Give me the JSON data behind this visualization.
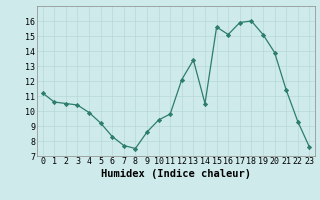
{
  "xlabel": "Humidex (Indice chaleur)",
  "ylabel": "",
  "x": [
    0,
    1,
    2,
    3,
    4,
    5,
    6,
    7,
    8,
    9,
    10,
    11,
    12,
    13,
    14,
    15,
    16,
    17,
    18,
    19,
    20,
    21,
    22,
    23
  ],
  "y": [
    11.2,
    10.6,
    10.5,
    10.4,
    9.9,
    9.2,
    8.3,
    7.7,
    7.5,
    8.6,
    9.4,
    9.8,
    12.1,
    13.4,
    10.5,
    15.6,
    15.1,
    15.9,
    16.0,
    15.1,
    13.9,
    11.4,
    9.3,
    7.6
  ],
  "ylim": [
    7,
    17
  ],
  "xlim": [
    -0.5,
    23.5
  ],
  "yticks": [
    7,
    8,
    9,
    10,
    11,
    12,
    13,
    14,
    15,
    16
  ],
  "xticks": [
    0,
    1,
    2,
    3,
    4,
    5,
    6,
    7,
    8,
    9,
    10,
    11,
    12,
    13,
    14,
    15,
    16,
    17,
    18,
    19,
    20,
    21,
    22,
    23
  ],
  "line_color": "#2d7d6e",
  "marker": "D",
  "marker_size": 2.2,
  "bg_color": "#ceeaea",
  "grid_color": "#b8d8d8",
  "xlabel_fontsize": 7.5,
  "tick_fontsize": 6.0
}
